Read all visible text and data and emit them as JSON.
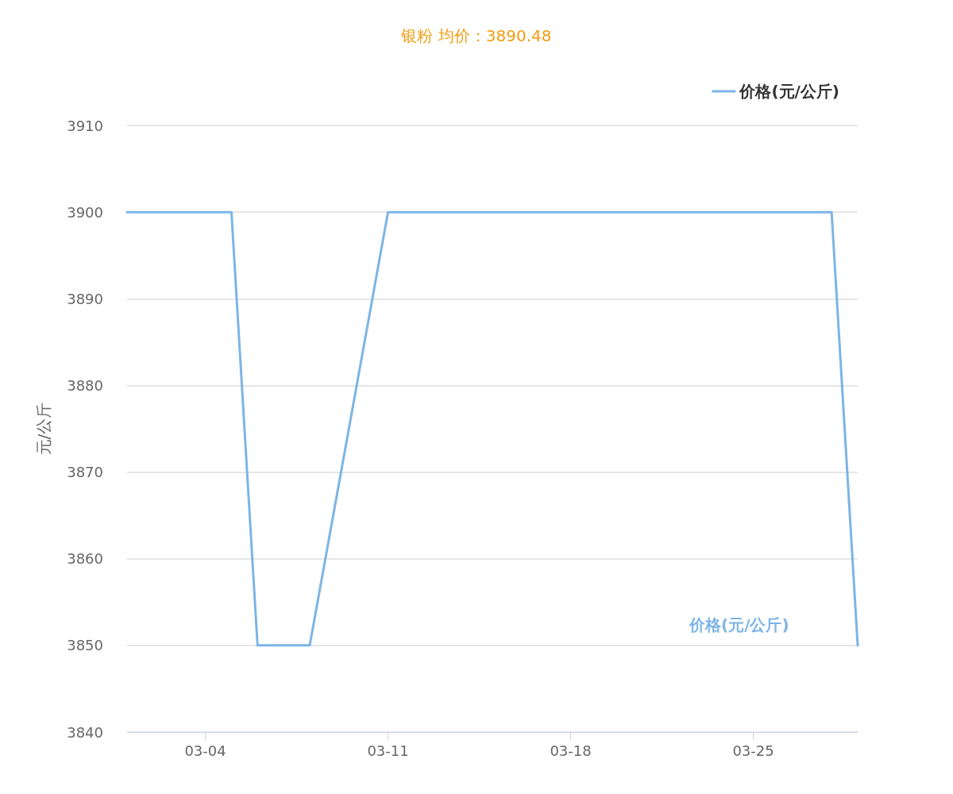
{
  "chart_data": {
    "type": "line",
    "title": "银粉 均价：3890.48",
    "ylabel": "元/公斤",
    "x": [
      "--03-01",
      "--03-04",
      "--03-05",
      "--03-06",
      "--03-07",
      "--03-08",
      "--03-11",
      "--03-12",
      "--03-13",
      "--03-14",
      "--03-15",
      "--03-18",
      "--03-19",
      "--03-20",
      "--03-21",
      "--03-22",
      "--03-25",
      "--03-26",
      "--03-27",
      "--03-28",
      "--03-29"
    ],
    "series": [
      {
        "name": "价格(元/公斤)",
        "color": "#7cb5e6",
        "values": [
          3900,
          3900,
          3900,
          3850,
          3850,
          3850,
          3900,
          3900,
          3900,
          3900,
          3900,
          3900,
          3900,
          3900,
          3900,
          3900,
          3900,
          3900,
          3900,
          3900,
          3850
        ]
      }
    ],
    "xlim": [
      "--03-01",
      "--03-29"
    ],
    "xticks": [
      {
        "value": "--03-04",
        "label": "03-04"
      },
      {
        "value": "--03-11",
        "label": "03-11"
      },
      {
        "value": "--03-18",
        "label": "03-18"
      },
      {
        "value": "--03-25",
        "label": "03-25"
      }
    ],
    "ylim": [
      3840,
      3910
    ],
    "yticks": [
      3840,
      3850,
      3860,
      3870,
      3880,
      3890,
      3900,
      3910
    ],
    "grid": "y",
    "legend": "top right",
    "marker": "none",
    "line_style": "solid"
  }
}
